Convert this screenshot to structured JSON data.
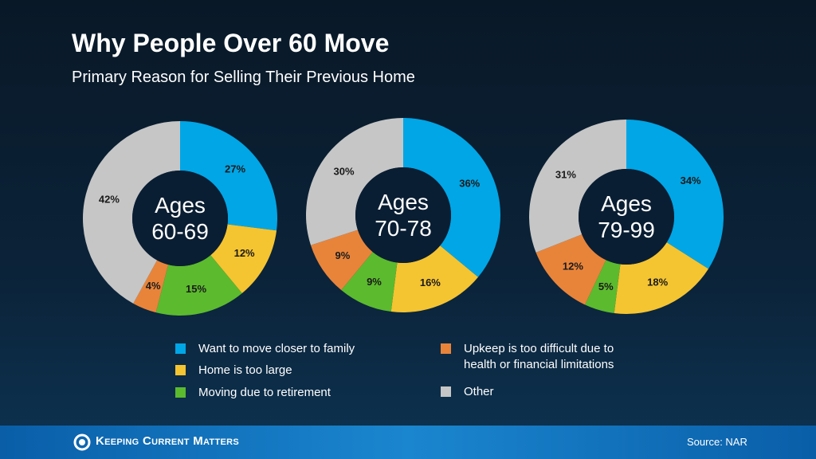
{
  "title": "Why People Over 60 Move",
  "subtitle": "Primary Reason for Selling Their Previous Home",
  "legend": {
    "categories": [
      "Want to move closer to family",
      "Home is too large",
      "Moving due to retirement",
      "Upkeep is too difficult due to health or financial limitations",
      "Other"
    ],
    "colors": [
      "#00a6e6",
      "#f5c431",
      "#5cba2e",
      "#e8843a",
      "#c6c6c6"
    ]
  },
  "chart_data": [
    {
      "type": "pie",
      "center_label": "Ages 60-69",
      "values": [
        27,
        12,
        15,
        4,
        42
      ],
      "value_labels": [
        "27%",
        "12%",
        "15%",
        "4%",
        "42%"
      ]
    },
    {
      "type": "pie",
      "center_label": "Ages 70-78",
      "values": [
        36,
        16,
        9,
        9,
        30
      ],
      "value_labels": [
        "36%",
        "16%",
        "9%",
        "9%",
        "30%"
      ]
    },
    {
      "type": "pie",
      "center_label": "Ages 79-99",
      "values": [
        34,
        18,
        5,
        12,
        31
      ],
      "value_labels": [
        "34%",
        "18%",
        "5%",
        "12%",
        "31%"
      ]
    }
  ],
  "footer": {
    "brand": "Keeping Current Matters",
    "source": "Source: NAR"
  }
}
